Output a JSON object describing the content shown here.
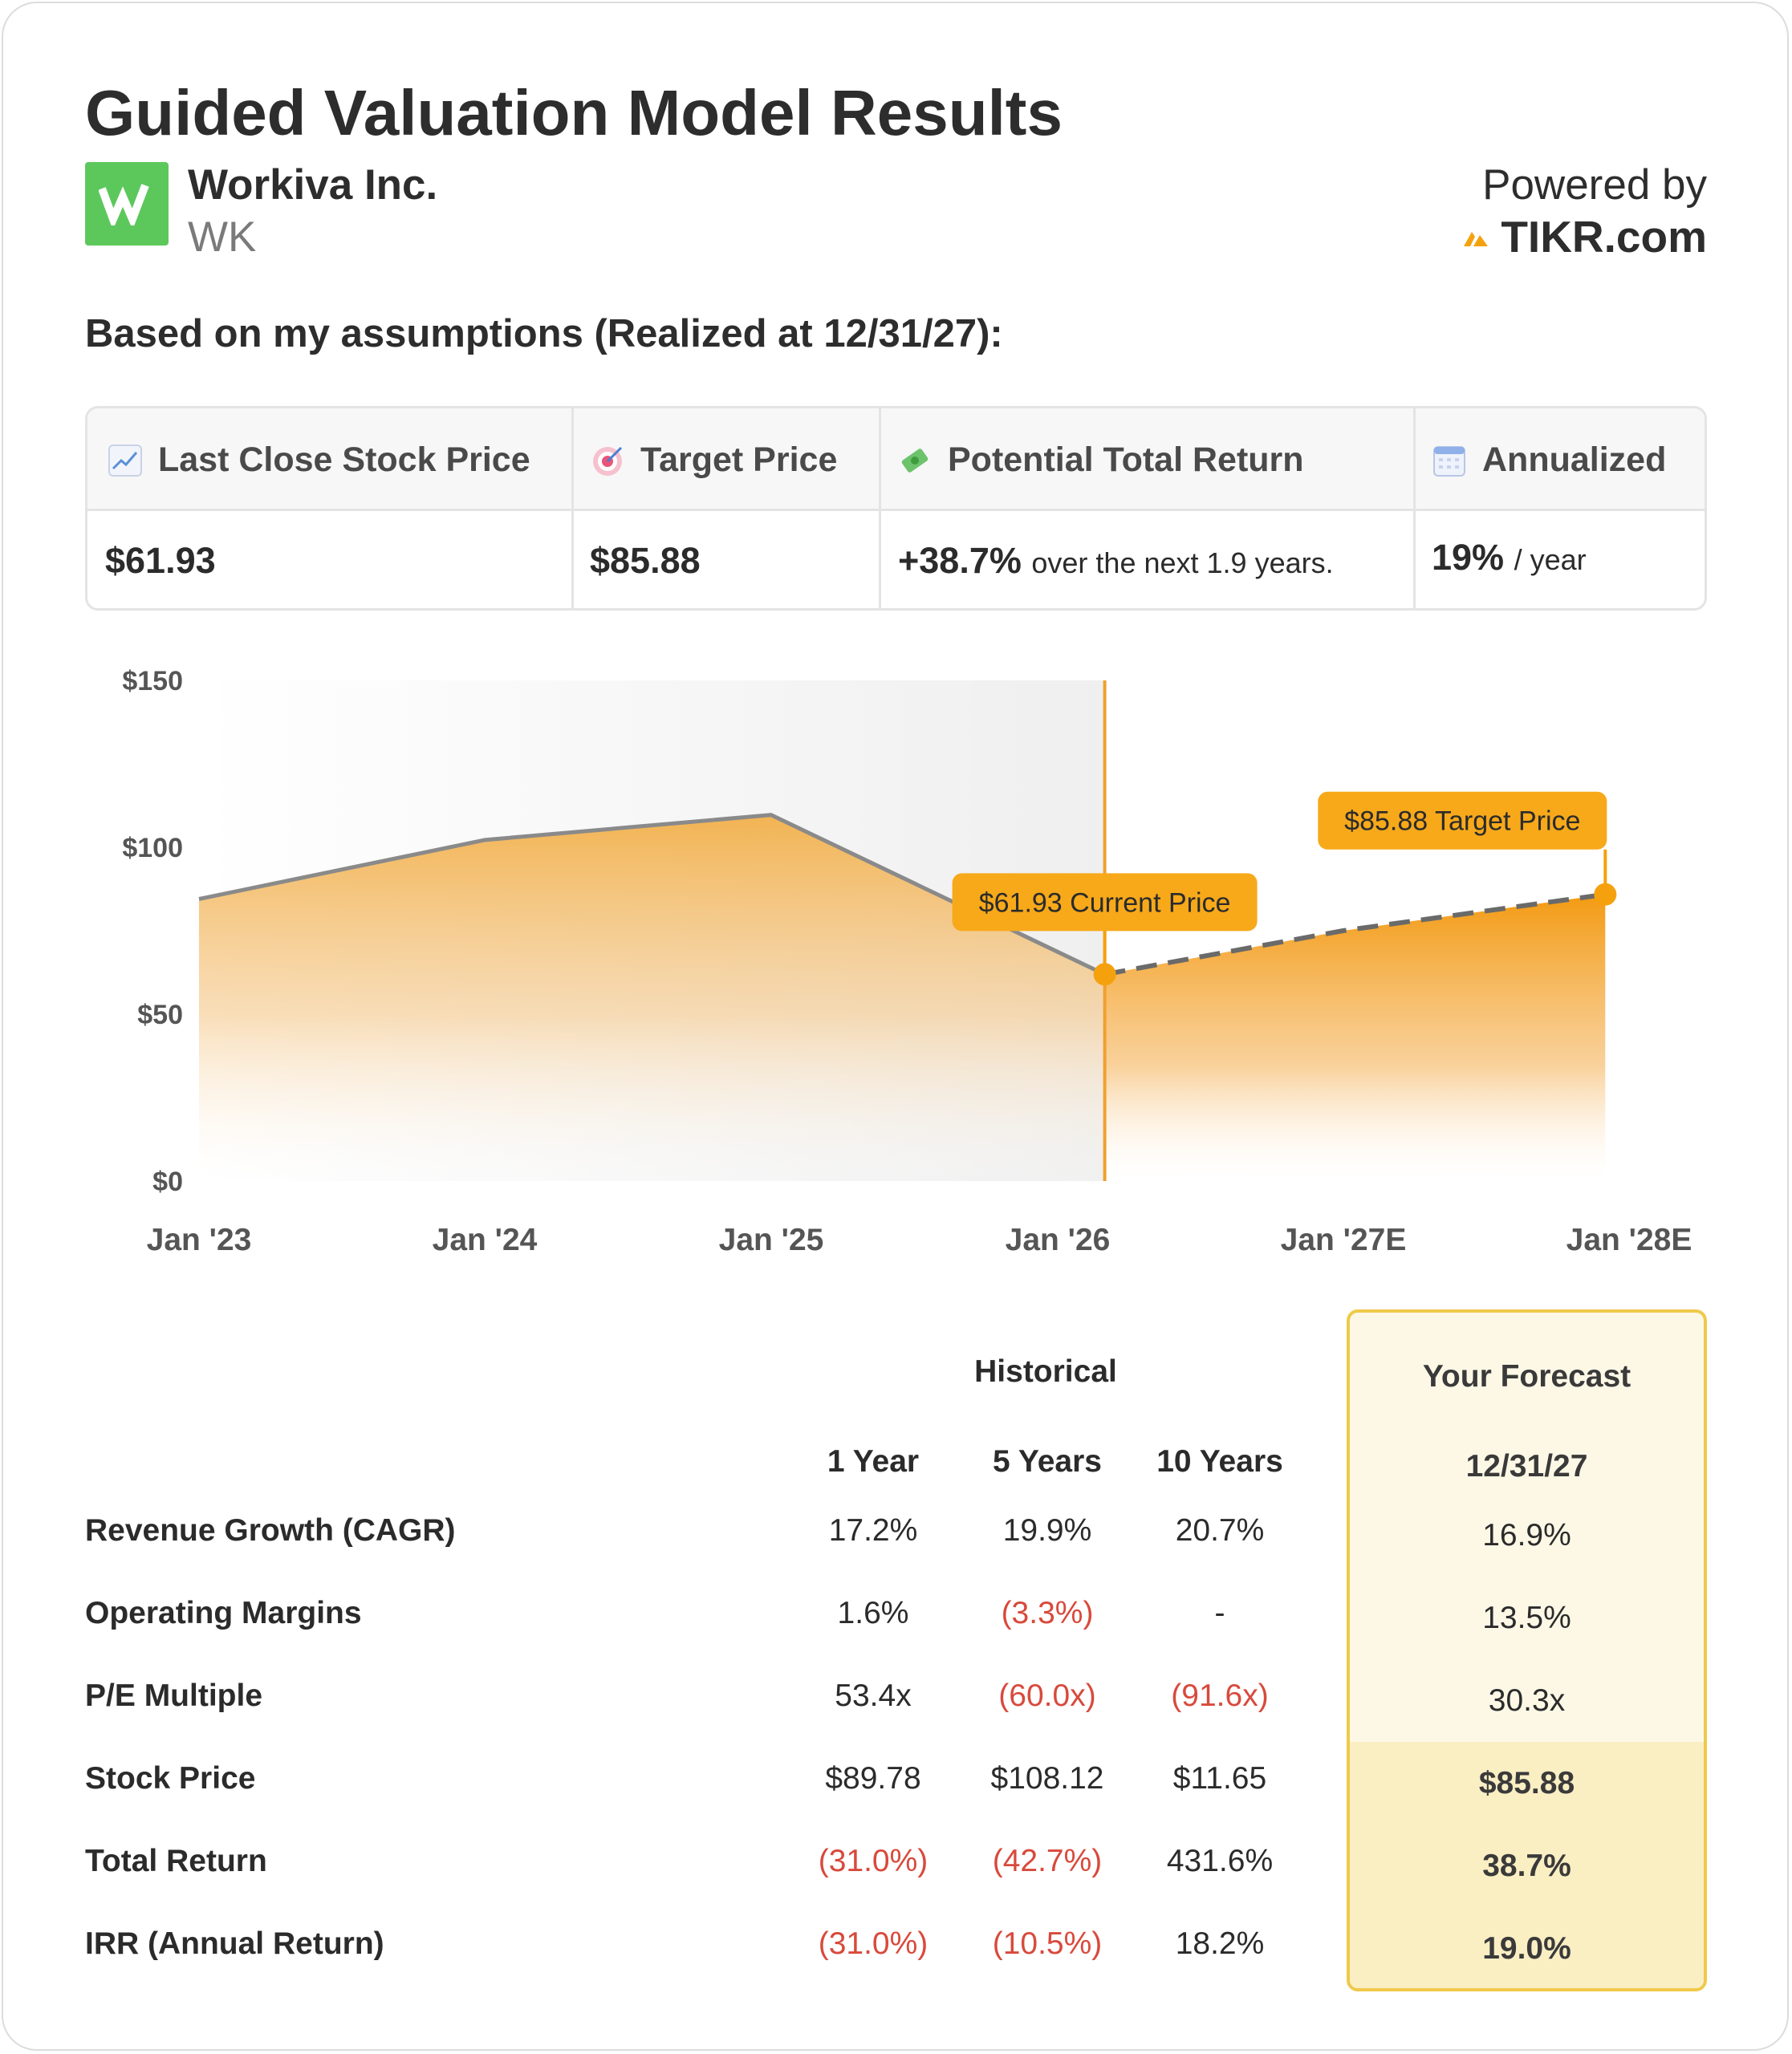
{
  "title": "Guided Valuation Model Results",
  "company": {
    "name": "Workiva Inc.",
    "ticker": "WK",
    "logo_letter": "w"
  },
  "powered": {
    "label": "Powered by",
    "brand": "TIKR.com"
  },
  "assumptions_label": "Based on my assumptions (Realized at 12/31/27):",
  "stats": {
    "headers": [
      {
        "icon": "chart-up-icon",
        "label": "Last Close Stock Price"
      },
      {
        "icon": "target-icon",
        "label": "Target Price"
      },
      {
        "icon": "money-icon",
        "label": "Potential Total Return"
      },
      {
        "icon": "calendar-icon",
        "label": "Annualized"
      }
    ],
    "last_close": "$61.93",
    "target": "$85.88",
    "return_value": "+38.7%",
    "return_note": "over the next 1.9 years.",
    "annualized_value": "19%",
    "annualized_note": "/ year"
  },
  "chart_data": {
    "type": "area",
    "y_tick_labels": [
      "$150",
      "$100",
      "$50",
      "$0"
    ],
    "ylim": [
      0,
      150
    ],
    "x_tick_labels": [
      "Jan '23",
      "Jan '24",
      "Jan '25",
      "Jan '26",
      "Jan '27E",
      "Jan '28E"
    ],
    "series": [
      {
        "values": [
          {
            "x": "2023-01",
            "y": 84.5
          },
          {
            "x": "2024-01",
            "y": 102.2
          },
          {
            "x": "2025-01",
            "y": 109.7
          },
          {
            "x": "2026-03",
            "y": 61.93
          }
        ]
      },
      {
        "style": "dashed",
        "values": [
          {
            "x": "2026-03",
            "y": 61.93
          },
          {
            "x": "2027-01",
            "y": 75.0
          },
          {
            "x": "2027-12",
            "y": 85.88
          }
        ]
      }
    ],
    "annotations": [
      {
        "text": "$61.93 Current Price",
        "x": "2026-03",
        "y": 61.93
      },
      {
        "text": "$85.88 Target Price",
        "x": "2027-12",
        "y": 85.88
      }
    ],
    "colors": {
      "fill": "#f5a623",
      "line": "#8a8a8a",
      "marker": "#f5a10e",
      "divider": "#f0a030"
    }
  },
  "table": {
    "historical_label": "Historical",
    "forecast_label": "Your Forecast",
    "forecast_date": "12/31/27",
    "columns": [
      "1 Year",
      "5 Years",
      "10 Years"
    ],
    "rows": [
      {
        "label": "Revenue Growth (CAGR)",
        "values": [
          "17.2%",
          "19.9%",
          "20.7%"
        ],
        "forecast": "16.9%"
      },
      {
        "label": "Operating Margins",
        "values": [
          "1.6%",
          "(3.3%)",
          "-"
        ],
        "forecast": "13.5%"
      },
      {
        "label": "P/E Multiple",
        "values": [
          "53.4x",
          "(60.0x)",
          "(91.6x)"
        ],
        "forecast": "30.3x"
      },
      {
        "label": "Stock Price",
        "values": [
          "$89.78",
          "$108.12",
          "$11.65"
        ],
        "forecast": "$85.88"
      },
      {
        "label": "Total Return",
        "values": [
          "(31.0%)",
          "(42.7%)",
          "431.6%"
        ],
        "forecast": "38.7%"
      },
      {
        "label": "IRR (Annual Return)",
        "values": [
          "(31.0%)",
          "(10.5%)",
          "18.2%"
        ],
        "forecast": "19.0%"
      }
    ]
  }
}
